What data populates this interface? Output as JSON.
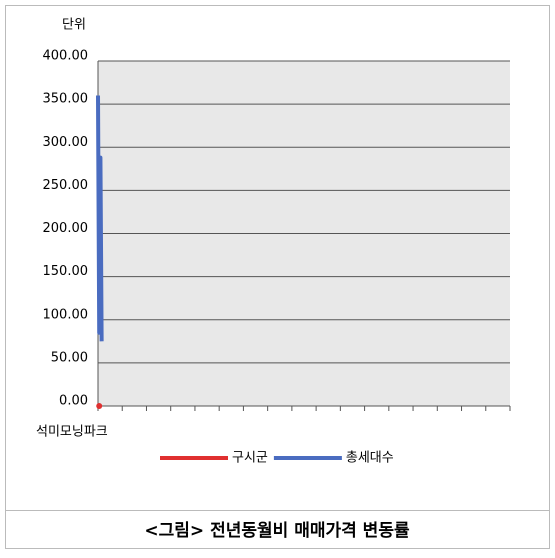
{
  "chart_data": {
    "type": "line",
    "unit_label": "단위",
    "caption": "<그림> 전년동월비 매매가격 변동률",
    "categories": [
      "석미모닝파크",
      null,
      null,
      null,
      null,
      null,
      null,
      null,
      null,
      null,
      null,
      null,
      null,
      null,
      null,
      null,
      null
    ],
    "xlim": [
      0,
      17
    ],
    "series": [
      {
        "name": "구시군",
        "color": "#e03030",
        "x": [
          0.05
        ],
        "values": [
          0
        ]
      },
      {
        "name": "총세대수",
        "color": "#4a6cc0",
        "x": [
          0,
          0.05,
          0.1,
          0.15
        ],
        "values": [
          360,
          85,
          288,
          75
        ]
      }
    ],
    "ylim": [
      0,
      400
    ],
    "yticks": [
      {
        "value": 0,
        "label": "0.00"
      },
      {
        "value": 50,
        "label": "50.00"
      },
      {
        "value": 100,
        "label": "100.00"
      },
      {
        "value": 150,
        "label": "150.00"
      },
      {
        "value": 200,
        "label": "200.00"
      },
      {
        "value": 250,
        "label": "250.00"
      },
      {
        "value": 300,
        "label": "300.00"
      },
      {
        "value": 350,
        "label": "350.00"
      },
      {
        "value": 400,
        "label": "400.00"
      }
    ],
    "grid": true
  }
}
